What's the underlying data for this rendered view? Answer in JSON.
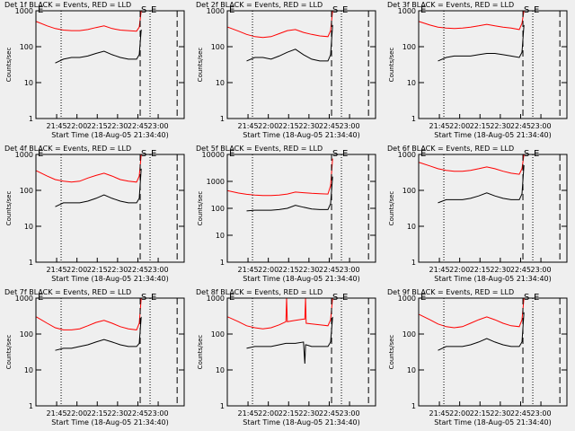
{
  "chart_data": [
    {
      "type": "line",
      "title": "Det 1f BLACK = Events, RED = LLD",
      "xlabel": "Start Time (18-Aug-05 21:34:40)",
      "ylabel": "Counts/sec",
      "log_y": true,
      "xlim": [
        1289.7,
        1399.2
      ],
      "ylim": [
        1,
        1000
      ],
      "yticks": [
        1,
        10,
        100,
        1000
      ],
      "xticks": [
        {
          "value": 1305,
          "label": "21:45"
        },
        {
          "value": 1320,
          "label": "22:00"
        },
        {
          "value": 1335,
          "label": "22:15"
        },
        {
          "value": 1350,
          "label": "22:30"
        },
        {
          "value": 1365,
          "label": "22:45"
        },
        {
          "value": 1380,
          "label": "23:00"
        }
      ],
      "corner_label": "E",
      "events": [
        {
          "x": 1308.3,
          "style": "dotted"
        },
        {
          "x": 1366.7,
          "style": "dashed",
          "label": "S"
        },
        {
          "x": 1374,
          "style": "dotted",
          "label": "E"
        },
        {
          "x": 1394,
          "style": "dashed"
        }
      ],
      "x": [
        1290,
        1298,
        1304,
        1310,
        1316,
        1322,
        1328,
        1334,
        1340,
        1346,
        1352,
        1358,
        1364,
        1366,
        1367.5
      ],
      "series": [
        {
          "color": "#000000",
          "values": [
            null,
            null,
            35,
            45,
            50,
            50,
            55,
            65,
            75,
            60,
            50,
            45,
            45,
            60,
            300
          ]
        },
        {
          "color": "#ff0000",
          "values": [
            500,
            380,
            320,
            290,
            280,
            280,
            300,
            340,
            380,
            320,
            290,
            280,
            270,
            350,
            1000
          ]
        }
      ]
    },
    {
      "type": "line",
      "title": "Det 2f BLACK = Events, RED = LLD",
      "xlabel": "Start Time (18-Aug-05 21:34:40)",
      "ylabel": "Counts/sec",
      "log_y": true,
      "xlim": [
        1289.7,
        1399.2
      ],
      "ylim": [
        1,
        1000
      ],
      "yticks": [
        1,
        10,
        100,
        1000
      ],
      "xticks": [
        {
          "value": 1305,
          "label": "21:45"
        },
        {
          "value": 1320,
          "label": "22:00"
        },
        {
          "value": 1335,
          "label": "22:15"
        },
        {
          "value": 1350,
          "label": "22:30"
        },
        {
          "value": 1365,
          "label": "22:45"
        },
        {
          "value": 1380,
          "label": "23:00"
        }
      ],
      "corner_label": "E",
      "events": [
        {
          "x": 1308.3,
          "style": "dotted"
        },
        {
          "x": 1366.7,
          "style": "dashed",
          "label": "S"
        },
        {
          "x": 1374,
          "style": "dotted",
          "label": "E"
        },
        {
          "x": 1394,
          "style": "dashed"
        }
      ],
      "x": [
        1290,
        1298,
        1304,
        1310,
        1316,
        1322,
        1328,
        1334,
        1340,
        1346,
        1352,
        1358,
        1364,
        1366,
        1367.5
      ],
      "series": [
        {
          "color": "#000000",
          "values": [
            null,
            null,
            40,
            50,
            50,
            45,
            55,
            70,
            85,
            60,
            45,
            40,
            40,
            60,
            400
          ]
        },
        {
          "color": "#ff0000",
          "values": [
            350,
            270,
            220,
            190,
            180,
            190,
            230,
            280,
            300,
            250,
            220,
            200,
            190,
            280,
            1000
          ]
        }
      ]
    },
    {
      "type": "line",
      "title": "Det 3f BLACK = Events, RED = LLD",
      "xlabel": "Start Time (18-Aug-05 21:34:40)",
      "ylabel": "Counts/sec",
      "log_y": true,
      "xlim": [
        1289.7,
        1399.2
      ],
      "ylim": [
        1,
        1000
      ],
      "yticks": [
        1,
        10,
        100,
        1000
      ],
      "xticks": [
        {
          "value": 1305,
          "label": "21:45"
        },
        {
          "value": 1320,
          "label": "22:00"
        },
        {
          "value": 1335,
          "label": "22:15"
        },
        {
          "value": 1350,
          "label": "22:30"
        },
        {
          "value": 1365,
          "label": "22:45"
        },
        {
          "value": 1380,
          "label": "23:00"
        }
      ],
      "corner_label": "E",
      "events": [
        {
          "x": 1308.3,
          "style": "dotted"
        },
        {
          "x": 1366.7,
          "style": "dashed",
          "label": "S"
        },
        {
          "x": 1374,
          "style": "dotted",
          "label": "E"
        },
        {
          "x": 1394,
          "style": "dashed"
        }
      ],
      "x": [
        1290,
        1298,
        1304,
        1310,
        1316,
        1322,
        1328,
        1334,
        1340,
        1346,
        1352,
        1358,
        1364,
        1366,
        1367.5
      ],
      "series": [
        {
          "color": "#000000",
          "values": [
            null,
            null,
            40,
            50,
            55,
            55,
            55,
            60,
            65,
            65,
            60,
            55,
            50,
            70,
            400
          ]
        },
        {
          "color": "#ff0000",
          "values": [
            500,
            400,
            350,
            330,
            320,
            330,
            350,
            380,
            420,
            380,
            350,
            330,
            300,
            450,
            1000
          ]
        }
      ]
    },
    {
      "type": "line",
      "title": "Det 4f BLACK = Events, RED = LLD",
      "xlabel": "Start Time (18-Aug-05 21:34:40)",
      "ylabel": "Counts/sec",
      "log_y": true,
      "xlim": [
        1289.7,
        1399.2
      ],
      "ylim": [
        1,
        1000
      ],
      "yticks": [
        1,
        10,
        100,
        1000
      ],
      "xticks": [
        {
          "value": 1305,
          "label": "21:45"
        },
        {
          "value": 1320,
          "label": "22:00"
        },
        {
          "value": 1335,
          "label": "22:15"
        },
        {
          "value": 1350,
          "label": "22:30"
        },
        {
          "value": 1365,
          "label": "22:45"
        },
        {
          "value": 1380,
          "label": "23:00"
        }
      ],
      "corner_label": "E",
      "events": [
        {
          "x": 1308.3,
          "style": "dotted"
        },
        {
          "x": 1366.7,
          "style": "dashed",
          "label": "S"
        },
        {
          "x": 1374,
          "style": "dotted",
          "label": "E"
        },
        {
          "x": 1394,
          "style": "dashed"
        }
      ],
      "x": [
        1290,
        1298,
        1304,
        1310,
        1316,
        1322,
        1328,
        1334,
        1340,
        1346,
        1352,
        1358,
        1364,
        1366,
        1367.5
      ],
      "series": [
        {
          "color": "#000000",
          "values": [
            null,
            null,
            35,
            45,
            45,
            45,
            50,
            60,
            75,
            60,
            50,
            45,
            45,
            60,
            400
          ]
        },
        {
          "color": "#ff0000",
          "values": [
            350,
            250,
            200,
            180,
            170,
            180,
            220,
            260,
            300,
            250,
            200,
            180,
            170,
            250,
            1000
          ]
        }
      ]
    },
    {
      "type": "line",
      "title": "Det 5f BLACK = Events, RED = LLD",
      "xlabel": "Start Time (18-Aug-05 21:34:40)",
      "ylabel": "Counts/sec",
      "log_y": true,
      "xlim": [
        1289.7,
        1399.2
      ],
      "ylim": [
        1,
        10000
      ],
      "yticks": [
        1,
        10,
        100,
        1000,
        10000
      ],
      "xticks": [
        {
          "value": 1305,
          "label": "21:45"
        },
        {
          "value": 1320,
          "label": "22:00"
        },
        {
          "value": 1335,
          "label": "22:15"
        },
        {
          "value": 1350,
          "label": "22:30"
        },
        {
          "value": 1365,
          "label": "22:45"
        },
        {
          "value": 1380,
          "label": "23:00"
        }
      ],
      "corner_label": "E",
      "events": [
        {
          "x": 1308.3,
          "style": "dotted"
        },
        {
          "x": 1366.7,
          "style": "dashed",
          "label": "S"
        },
        {
          "x": 1374,
          "style": "dotted",
          "label": "E"
        },
        {
          "x": 1394,
          "style": "dashed"
        }
      ],
      "x": [
        1290,
        1298,
        1304,
        1310,
        1316,
        1322,
        1328,
        1334,
        1340,
        1346,
        1352,
        1358,
        1364,
        1366,
        1367.5
      ],
      "series": [
        {
          "color": "#000000",
          "values": [
            null,
            null,
            80,
            85,
            85,
            85,
            90,
            100,
            130,
            110,
            95,
            90,
            90,
            150,
            1500
          ]
        },
        {
          "color": "#ff0000",
          "values": [
            450,
            370,
            330,
            310,
            300,
            300,
            310,
            340,
            400,
            380,
            360,
            350,
            340,
            700,
            7000
          ]
        }
      ]
    },
    {
      "type": "line",
      "title": "Det 6f BLACK = Events, RED = LLD",
      "xlabel": "Start Time (18-Aug-05 21:34:40)",
      "ylabel": "Counts/sec",
      "log_y": true,
      "xlim": [
        1289.7,
        1399.2
      ],
      "ylim": [
        1,
        1000
      ],
      "yticks": [
        1,
        10,
        100,
        1000
      ],
      "xticks": [
        {
          "value": 1305,
          "label": "21:45"
        },
        {
          "value": 1320,
          "label": "22:00"
        },
        {
          "value": 1335,
          "label": "22:15"
        },
        {
          "value": 1350,
          "label": "22:30"
        },
        {
          "value": 1365,
          "label": "22:45"
        },
        {
          "value": 1380,
          "label": "23:00"
        }
      ],
      "corner_label": "E",
      "events": [
        {
          "x": 1308.3,
          "style": "dotted"
        },
        {
          "x": 1366.7,
          "style": "dashed",
          "label": "S"
        },
        {
          "x": 1374,
          "style": "dotted",
          "label": "E"
        },
        {
          "x": 1394,
          "style": "dashed"
        }
      ],
      "x": [
        1290,
        1298,
        1304,
        1310,
        1316,
        1322,
        1328,
        1334,
        1340,
        1346,
        1352,
        1358,
        1364,
        1366,
        1367.5
      ],
      "series": [
        {
          "color": "#000000",
          "values": [
            null,
            null,
            45,
            55,
            55,
            55,
            60,
            70,
            85,
            70,
            60,
            55,
            55,
            80,
            500
          ]
        },
        {
          "color": "#ff0000",
          "values": [
            600,
            480,
            400,
            360,
            340,
            340,
            360,
            400,
            450,
            400,
            340,
            300,
            280,
            400,
            1000
          ]
        }
      ]
    },
    {
      "type": "line",
      "title": "Det 7f BLACK = Events, RED = LLD",
      "xlabel": "Start Time (18-Aug-05 21:34:40)",
      "ylabel": "Counts/sec",
      "log_y": true,
      "xlim": [
        1289.7,
        1399.2
      ],
      "ylim": [
        1,
        1000
      ],
      "yticks": [
        1,
        10,
        100,
        1000
      ],
      "xticks": [
        {
          "value": 1305,
          "label": "21:45"
        },
        {
          "value": 1320,
          "label": "22:00"
        },
        {
          "value": 1335,
          "label": "22:15"
        },
        {
          "value": 1350,
          "label": "22:30"
        },
        {
          "value": 1365,
          "label": "22:45"
        },
        {
          "value": 1380,
          "label": "23:00"
        }
      ],
      "corner_label": "E",
      "events": [
        {
          "x": 1308.3,
          "style": "dotted"
        },
        {
          "x": 1366.7,
          "style": "dashed",
          "label": "S"
        },
        {
          "x": 1374,
          "style": "dotted",
          "label": "E"
        },
        {
          "x": 1394,
          "style": "dashed"
        }
      ],
      "x": [
        1290,
        1298,
        1304,
        1310,
        1316,
        1322,
        1328,
        1334,
        1340,
        1346,
        1352,
        1358,
        1364,
        1366,
        1367.5
      ],
      "series": [
        {
          "color": "#000000",
          "values": [
            null,
            null,
            35,
            40,
            40,
            45,
            50,
            60,
            70,
            60,
            50,
            45,
            45,
            55,
            300
          ]
        },
        {
          "color": "#ff0000",
          "values": [
            300,
            200,
            150,
            130,
            130,
            140,
            170,
            210,
            240,
            200,
            160,
            140,
            130,
            200,
            1000
          ]
        }
      ]
    },
    {
      "type": "line",
      "title": "Det 8f BLACK = Events, RED = LLD",
      "xlabel": "Start Time (18-Aug-05 21:34:40)",
      "ylabel": "Counts/sec",
      "log_y": true,
      "xlim": [
        1289.7,
        1399.2
      ],
      "ylim": [
        1,
        1000
      ],
      "yticks": [
        1,
        10,
        100,
        1000
      ],
      "xticks": [
        {
          "value": 1305,
          "label": "21:45"
        },
        {
          "value": 1320,
          "label": "22:00"
        },
        {
          "value": 1335,
          "label": "22:15"
        },
        {
          "value": 1350,
          "label": "22:30"
        },
        {
          "value": 1365,
          "label": "22:45"
        },
        {
          "value": 1380,
          "label": "23:00"
        }
      ],
      "corner_label": "E",
      "events": [
        {
          "x": 1308.3,
          "style": "dotted"
        },
        {
          "x": 1366.7,
          "style": "dashed",
          "label": "S"
        },
        {
          "x": 1374,
          "style": "dotted",
          "label": "E"
        },
        {
          "x": 1394,
          "style": "dashed"
        }
      ],
      "x": [
        1290,
        1298,
        1304,
        1310,
        1316,
        1322,
        1328,
        1333,
        1333.5,
        1334,
        1340,
        1346,
        1347,
        1347.5,
        1348,
        1352,
        1358,
        1364,
        1366,
        1367.5
      ],
      "series": [
        {
          "color": "#000000",
          "values": [
            null,
            null,
            40,
            45,
            45,
            45,
            50,
            55,
            55,
            55,
            55,
            60,
            15,
            50,
            50,
            45,
            45,
            45,
            60,
            300
          ]
        },
        {
          "color": "#ff0000",
          "values": [
            300,
            220,
            170,
            150,
            140,
            150,
            180,
            220,
            1000,
            220,
            240,
            260,
            260,
            1000,
            200,
            190,
            180,
            170,
            250,
            1000
          ]
        }
      ]
    },
    {
      "type": "line",
      "title": "Det 9f BLACK = Events, RED = LLD",
      "xlabel": "Start Time (18-Aug-05 21:34:40)",
      "ylabel": "Counts/sec",
      "log_y": true,
      "xlim": [
        1289.7,
        1399.2
      ],
      "ylim": [
        1,
        1000
      ],
      "yticks": [
        1,
        10,
        100,
        1000
      ],
      "xticks": [
        {
          "value": 1305,
          "label": "21:45"
        },
        {
          "value": 1320,
          "label": "22:00"
        },
        {
          "value": 1335,
          "label": "22:15"
        },
        {
          "value": 1350,
          "label": "22:30"
        },
        {
          "value": 1365,
          "label": "22:45"
        },
        {
          "value": 1380,
          "label": "23:00"
        }
      ],
      "corner_label": "E",
      "events": [
        {
          "x": 1308.3,
          "style": "dotted"
        },
        {
          "x": 1366.7,
          "style": "dashed",
          "label": "S"
        },
        {
          "x": 1374,
          "style": "dotted",
          "label": "E"
        },
        {
          "x": 1394,
          "style": "dashed"
        }
      ],
      "x": [
        1290,
        1298,
        1304,
        1310,
        1316,
        1322,
        1328,
        1334,
        1340,
        1346,
        1352,
        1358,
        1364,
        1366,
        1367.5
      ],
      "series": [
        {
          "color": "#000000",
          "values": [
            null,
            null,
            35,
            45,
            45,
            45,
            50,
            60,
            75,
            60,
            50,
            45,
            45,
            60,
            400
          ]
        },
        {
          "color": "#ff0000",
          "values": [
            350,
            250,
            190,
            160,
            150,
            160,
            200,
            250,
            300,
            250,
            200,
            170,
            160,
            250,
            1000
          ]
        }
      ]
    }
  ]
}
